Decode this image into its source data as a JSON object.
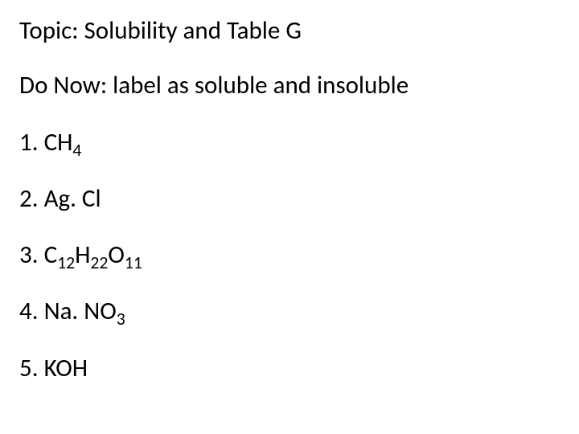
{
  "text_color": "#000000",
  "background_color": "#ffffff",
  "font_family": "Calibri, Arial, sans-serif",
  "title_fontsize": 31,
  "item_fontsize": 31,
  "topic": {
    "label": "Topic: Solubility and Table G"
  },
  "do_now": {
    "label": "Do Now: label as soluble and insoluble"
  },
  "items": [
    {
      "number": "1.",
      "prefix": "CH",
      "sub1": "4",
      "mid": "",
      "sub2": "",
      "suffix": "",
      "sub3": ""
    },
    {
      "number": "2.",
      "prefix": "Ag. Cl",
      "sub1": "",
      "mid": "",
      "sub2": "",
      "suffix": "",
      "sub3": ""
    },
    {
      "number": "3.",
      "prefix": "C",
      "sub1": "12",
      "mid": "H",
      "sub2": "22",
      "suffix": "O",
      "sub3": "11"
    },
    {
      "number": "4.",
      "prefix": "Na. NO",
      "sub1": "3",
      "mid": "",
      "sub2": "",
      "suffix": "",
      "sub3": ""
    },
    {
      "number": "5.",
      "prefix": "KOH",
      "sub1": "",
      "mid": "",
      "sub2": "",
      "suffix": "",
      "sub3": ""
    }
  ]
}
